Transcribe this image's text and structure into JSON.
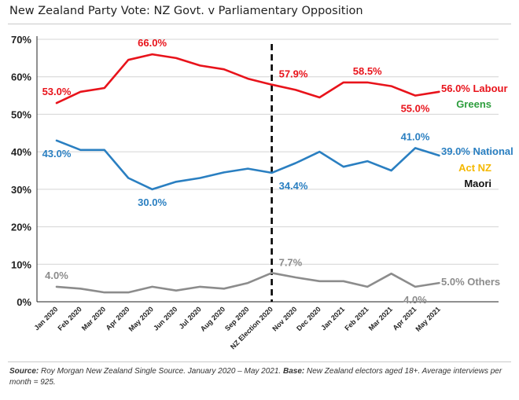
{
  "title": "New Zealand Party Vote: NZ Govt. v Parliamentary Opposition",
  "source": {
    "label1": "Source:",
    "text1": " Roy Morgan New Zealand Single Source. January 2020 – May 2021. ",
    "label2": "Base:",
    "text2": " New Zealand electors aged 18+. Average interviews per month = 925."
  },
  "colors": {
    "labour": "#e8131b",
    "national": "#2a7fc1",
    "others": "#8c8c8c",
    "greens": "#2e9e3e",
    "act": "#f5b800",
    "maori": "#111111",
    "grid": "#d4d4d4",
    "axis": "#222222"
  },
  "chart_data": {
    "type": "line",
    "title": "New Zealand Party Vote: NZ Govt. v Parliamentary Opposition",
    "xlabel": "",
    "ylabel": "",
    "ylim": [
      0,
      70
    ],
    "yticks": [
      "0%",
      "10%",
      "20%",
      "30%",
      "40%",
      "50%",
      "60%",
      "70%"
    ],
    "grid": true,
    "categories": [
      "Jan 2020",
      "Feb 2020",
      "Mar 2020",
      "Apr 2020",
      "May 2020",
      "Jun 2020",
      "Jul 2020",
      "Aug 2020",
      "Sep 2020",
      "NZ Election 2020",
      "Nov 2020",
      "Dec 2020",
      "Jan 2021",
      "Feb 2021",
      "Mar 2021",
      "Apr 2021",
      "May 2021"
    ],
    "series": [
      {
        "name": "Labour",
        "key": "labour",
        "values": [
          53.0,
          56.0,
          57.0,
          64.5,
          66.0,
          65.0,
          63.0,
          62.0,
          59.5,
          57.9,
          56.5,
          54.5,
          58.5,
          58.5,
          57.5,
          55.0,
          56.0
        ]
      },
      {
        "name": "National",
        "key": "national",
        "values": [
          43.0,
          40.5,
          40.5,
          33.0,
          30.0,
          32.0,
          33.0,
          34.5,
          35.5,
          34.4,
          37.0,
          40.0,
          36.0,
          37.5,
          35.0,
          41.0,
          39.0
        ]
      },
      {
        "name": "Others",
        "key": "others",
        "values": [
          4.0,
          3.5,
          2.5,
          2.5,
          4.0,
          3.0,
          4.0,
          3.5,
          5.0,
          7.7,
          6.5,
          5.5,
          5.5,
          4.0,
          7.5,
          4.0,
          5.0
        ]
      }
    ],
    "election_marker": {
      "category": "NZ Election 2020",
      "style": "dashed"
    },
    "data_labels": [
      {
        "text": "53.0%",
        "series": "labour",
        "index": 0,
        "pos": "above"
      },
      {
        "text": "66.0%",
        "series": "labour",
        "index": 4,
        "pos": "above"
      },
      {
        "text": "57.9%",
        "series": "labour",
        "index": 9,
        "pos": "above-right"
      },
      {
        "text": "58.5%",
        "series": "labour",
        "index": 13,
        "pos": "above"
      },
      {
        "text": "55.0%",
        "series": "labour",
        "index": 15,
        "pos": "below"
      },
      {
        "text": "43.0%",
        "series": "national",
        "index": 0,
        "pos": "below"
      },
      {
        "text": "30.0%",
        "series": "national",
        "index": 4,
        "pos": "below"
      },
      {
        "text": "34.4%",
        "series": "national",
        "index": 9,
        "pos": "below-right"
      },
      {
        "text": "41.0%",
        "series": "national",
        "index": 15,
        "pos": "above"
      },
      {
        "text": "4.0%",
        "series": "others",
        "index": 0,
        "pos": "above"
      },
      {
        "text": "7.7%",
        "series": "others",
        "index": 9,
        "pos": "above-right"
      },
      {
        "text": "4.0%",
        "series": "others",
        "index": 15,
        "pos": "below"
      }
    ],
    "legend": [
      {
        "text": "56.0% Labour",
        "key": "labour",
        "anchor": "labour-end"
      },
      {
        "text": "Greens",
        "key": "greens",
        "anchor": "labour-end-2"
      },
      {
        "text": "39.0% National",
        "key": "national",
        "anchor": "national-end"
      },
      {
        "text": "Act NZ",
        "key": "act",
        "anchor": "national-end-2"
      },
      {
        "text": "Maori",
        "key": "maori",
        "anchor": "national-end-3"
      },
      {
        "text": "5.0% Others",
        "key": "others",
        "anchor": "others-end"
      }
    ]
  }
}
